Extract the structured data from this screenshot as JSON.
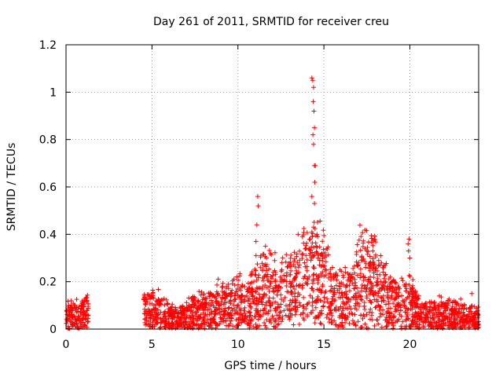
{
  "chart_data": {
    "type": "scatter",
    "title": "Day 261 of 2011, SRMTID for receiver creu",
    "xlabel": "GPS time / hours",
    "ylabel": "SRMTID / TECUs",
    "xlim": [
      0,
      24
    ],
    "ylim": [
      0,
      1.2
    ],
    "grid": true,
    "marker": "+",
    "marker_color": "#ff0000",
    "x_ticks": [
      0,
      5,
      10,
      15,
      20
    ],
    "x_tick_labels": [
      "0",
      "5",
      "10",
      "15",
      "20"
    ],
    "y_ticks": [
      0,
      0.2,
      0.4,
      0.6,
      0.8,
      1.0,
      1.2
    ],
    "y_tick_labels": [
      "0",
      "0.2",
      "0.4",
      "0.6",
      "0.8",
      "1",
      "1.2"
    ],
    "envelope": {
      "description": "approximate smoothed trend of the dense point cloud",
      "x": [
        0,
        0.5,
        1.0,
        1.3,
        4.6,
        5.0,
        5.5,
        6.0,
        6.5,
        7.0,
        7.5,
        8.0,
        8.5,
        9.0,
        9.5,
        10.0,
        10.5,
        11.0,
        11.5,
        12.0,
        12.5,
        13.0,
        13.5,
        14.0,
        14.5,
        15.0,
        15.5,
        16.0,
        16.5,
        17.0,
        17.5,
        18.0,
        18.5,
        19.0,
        19.5,
        20.0,
        20.5,
        21.0,
        21.5,
        22.0,
        22.5,
        23.0,
        23.5,
        24.0
      ],
      "y": [
        0.06,
        0.05,
        0.06,
        0.08,
        0.07,
        0.08,
        0.07,
        0.05,
        0.04,
        0.05,
        0.07,
        0.08,
        0.09,
        0.1,
        0.1,
        0.11,
        0.1,
        0.14,
        0.17,
        0.16,
        0.14,
        0.17,
        0.2,
        0.22,
        0.23,
        0.21,
        0.14,
        0.12,
        0.14,
        0.2,
        0.23,
        0.2,
        0.15,
        0.11,
        0.1,
        0.13,
        0.07,
        0.06,
        0.06,
        0.06,
        0.06,
        0.06,
        0.05,
        0.04
      ]
    },
    "spikes": [
      {
        "x": 11.15,
        "y": 0.56
      },
      {
        "x": 11.18,
        "y": 0.52
      },
      {
        "x": 11.1,
        "y": 0.44
      },
      {
        "x": 11.05,
        "y": 0.37
      },
      {
        "x": 11.6,
        "y": 0.35
      },
      {
        "x": 13.5,
        "y": 0.4
      },
      {
        "x": 14.3,
        "y": 1.06
      },
      {
        "x": 14.35,
        "y": 1.05
      },
      {
        "x": 14.4,
        "y": 1.02
      },
      {
        "x": 14.38,
        "y": 0.96
      },
      {
        "x": 14.42,
        "y": 0.92
      },
      {
        "x": 14.45,
        "y": 0.85
      },
      {
        "x": 14.36,
        "y": 0.82
      },
      {
        "x": 14.4,
        "y": 0.78
      },
      {
        "x": 14.45,
        "y": 0.69
      },
      {
        "x": 14.5,
        "y": 0.69
      },
      {
        "x": 14.47,
        "y": 0.62
      },
      {
        "x": 14.3,
        "y": 0.56
      },
      {
        "x": 14.45,
        "y": 0.53
      },
      {
        "x": 14.4,
        "y": 0.43
      },
      {
        "x": 14.3,
        "y": 0.41
      },
      {
        "x": 14.6,
        "y": 0.4
      },
      {
        "x": 14.2,
        "y": 0.38
      },
      {
        "x": 17.5,
        "y": 0.33
      },
      {
        "x": 18.3,
        "y": 0.31
      },
      {
        "x": 19.95,
        "y": 0.38
      },
      {
        "x": 19.9,
        "y": 0.36
      },
      {
        "x": 19.92,
        "y": 0.33
      },
      {
        "x": 20.0,
        "y": 0.3
      },
      {
        "x": 23.6,
        "y": 0.15
      }
    ],
    "segments": [
      {
        "x_start": 0.0,
        "x_end": 1.3
      },
      {
        "x_start": 4.5,
        "x_end": 24.0
      }
    ]
  }
}
